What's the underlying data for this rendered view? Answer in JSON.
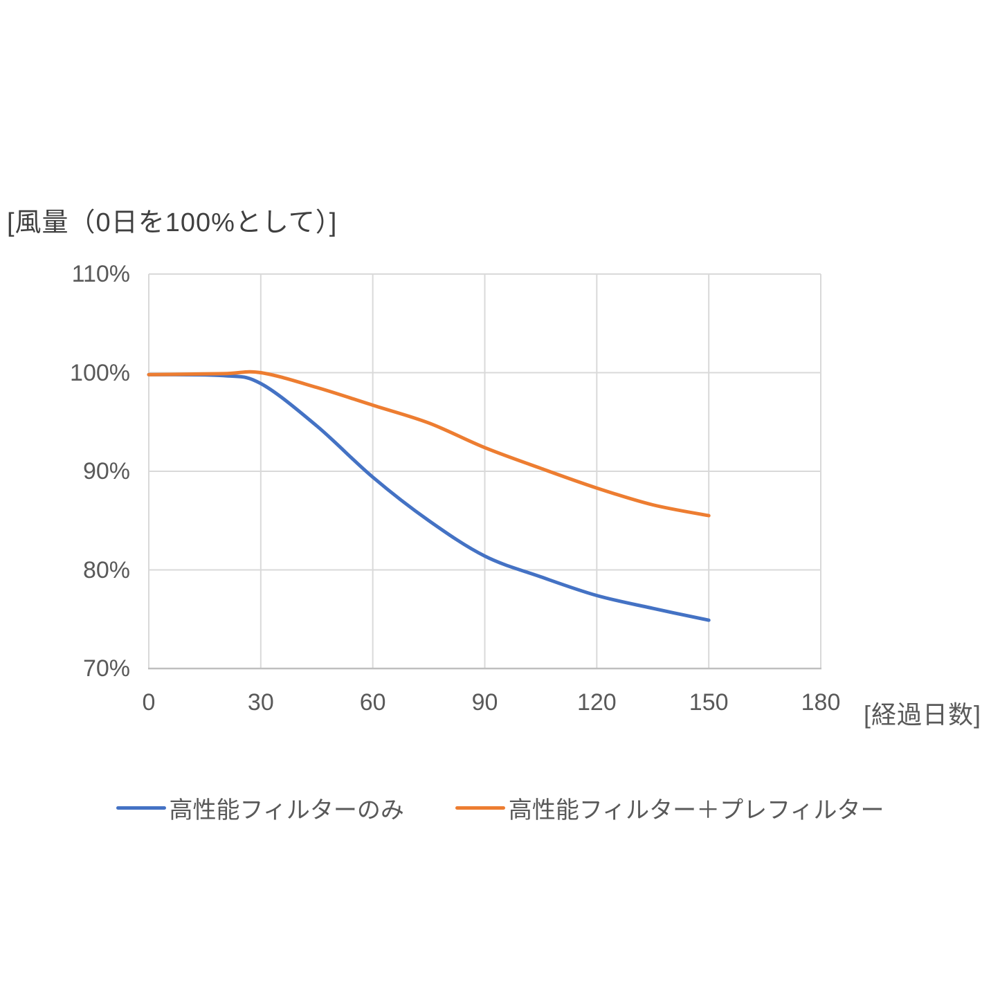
{
  "chart_data": {
    "type": "line",
    "title": "[風量（0日を100%として）]",
    "xlabel": "[経過日数]",
    "ylabel": "[風量（0日を100%として）]",
    "xlim": [
      0,
      180
    ],
    "ylim": [
      70,
      110
    ],
    "grid": true,
    "legend_position": "bottom",
    "x_ticks": [
      {
        "value": 0,
        "label": "0"
      },
      {
        "value": 30,
        "label": "30"
      },
      {
        "value": 60,
        "label": "60"
      },
      {
        "value": 90,
        "label": "90"
      },
      {
        "value": 120,
        "label": "120"
      },
      {
        "value": 150,
        "label": "150"
      },
      {
        "value": 180,
        "label": "180"
      }
    ],
    "y_ticks": [
      {
        "value": 70,
        "label": "70%"
      },
      {
        "value": 80,
        "label": "80%"
      },
      {
        "value": 90,
        "label": "90%"
      },
      {
        "value": 100,
        "label": "100%"
      },
      {
        "value": 110,
        "label": "110%"
      }
    ],
    "series": [
      {
        "name": "高性能フィルターのみ",
        "color": "#4472C4",
        "points": [
          [
            0,
            99.8
          ],
          [
            20,
            99.7
          ],
          [
            30,
            98.9
          ],
          [
            45,
            94.6
          ],
          [
            60,
            89.4
          ],
          [
            75,
            85.0
          ],
          [
            90,
            81.4
          ],
          [
            105,
            79.3
          ],
          [
            120,
            77.4
          ],
          [
            135,
            76.1
          ],
          [
            150,
            74.9
          ]
        ]
      },
      {
        "name": "高性能フィルター＋プレフィルター",
        "color": "#ED7D31",
        "points": [
          [
            0,
            99.8
          ],
          [
            20,
            99.9
          ],
          [
            30,
            100.0
          ],
          [
            45,
            98.5
          ],
          [
            60,
            96.7
          ],
          [
            75,
            94.9
          ],
          [
            90,
            92.4
          ],
          [
            105,
            90.3
          ],
          [
            120,
            88.3
          ],
          [
            135,
            86.6
          ],
          [
            150,
            85.5
          ]
        ]
      }
    ],
    "colors": {
      "grid": "#D9D9D9",
      "axis": "#BFBFBF",
      "tick_text": "#595959",
      "title_text": "#404040"
    }
  }
}
